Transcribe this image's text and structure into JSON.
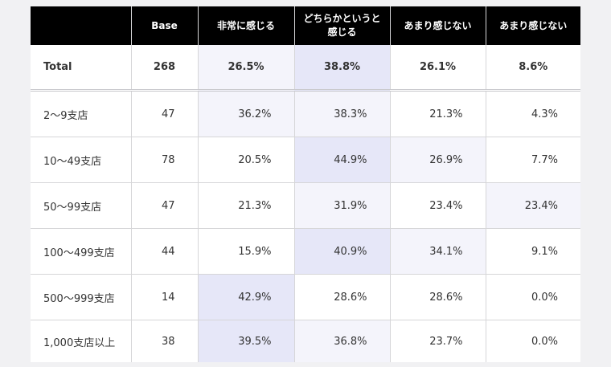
{
  "header": {
    "blank": "",
    "base": "Base",
    "c1": "非常に感じる",
    "c2": "どちらかというと感じる",
    "c3": "あまり感じない",
    "c4": "あまり感じない"
  },
  "rows": [
    {
      "label": "Total",
      "base": "268",
      "v1": "26.5%",
      "v2": "38.8%",
      "v3": "26.1%",
      "v4": "8.6%"
    },
    {
      "label": "2～9支店",
      "base": "47",
      "v1": "36.2%",
      "v2": "38.3%",
      "v3": "21.3%",
      "v4": "4.3%"
    },
    {
      "label": "10～49支店",
      "base": "78",
      "v1": "20.5%",
      "v2": "44.9%",
      "v3": "26.9%",
      "v4": "7.7%"
    },
    {
      "label": "50～99支店",
      "base": "47",
      "v1": "21.3%",
      "v2": "31.9%",
      "v3": "23.4%",
      "v4": "23.4%"
    },
    {
      "label": "100～499支店",
      "base": "44",
      "v1": "15.9%",
      "v2": "40.9%",
      "v3": "34.1%",
      "v4": "9.1%"
    },
    {
      "label": "500～999支店",
      "base": "14",
      "v1": "42.9%",
      "v2": "28.6%",
      "v3": "28.6%",
      "v4": "0.0%"
    },
    {
      "label": "1,000支店以上",
      "base": "38",
      "v1": "39.5%",
      "v2": "36.8%",
      "v3": "23.7%",
      "v4": "0.0%"
    }
  ],
  "colors": {
    "header_bg": "#000000",
    "highlight_light": "#f4f4fb",
    "highlight_strong": "#e6e7f8"
  }
}
